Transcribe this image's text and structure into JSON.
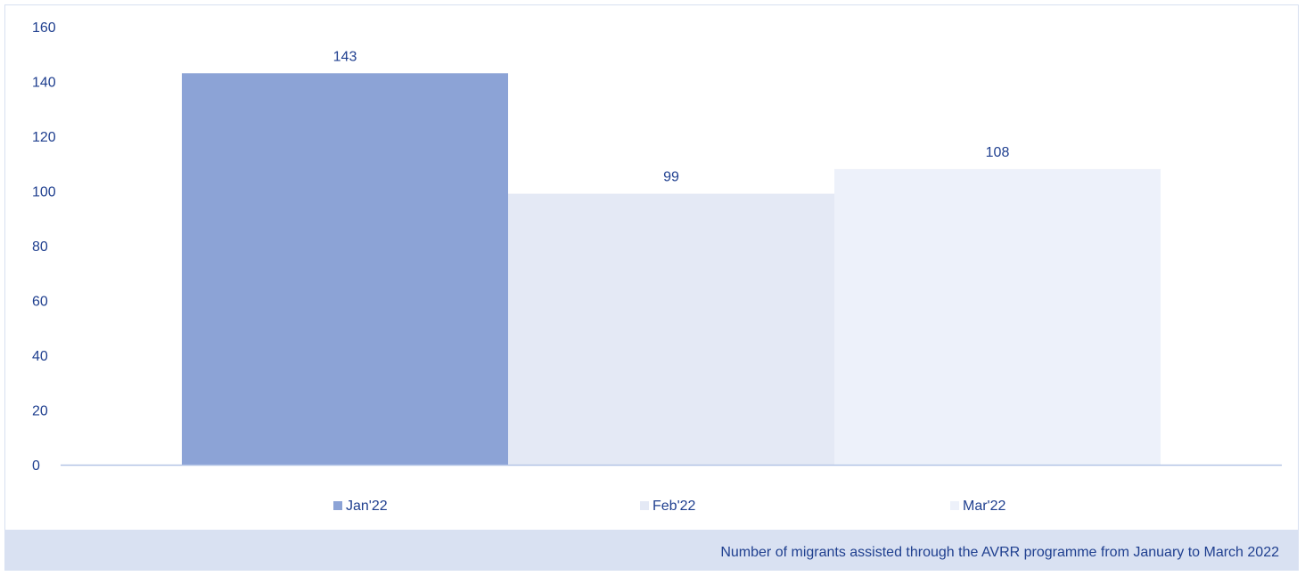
{
  "chart_data": {
    "type": "bar",
    "categories": [
      "Jan'22",
      "Feb'22",
      "Mar'22"
    ],
    "series": [
      {
        "name": "Jan'22",
        "values": [
          143,
          null,
          null
        ],
        "color": "#8ca3d6"
      },
      {
        "name": "Feb'22",
        "values": [
          null,
          99,
          null
        ],
        "color": "#e4e9f5"
      },
      {
        "name": "Mar'22",
        "values": [
          null,
          null,
          108
        ],
        "color": "#edf1fa"
      }
    ],
    "values": [
      143,
      99,
      108
    ],
    "bar_colors": [
      "#8ca3d6",
      "#e4e9f5",
      "#edf1fa"
    ],
    "data_labels": [
      "143",
      "99",
      "108"
    ],
    "ylim": [
      0,
      160
    ],
    "yticks": [
      0,
      20,
      40,
      60,
      80,
      100,
      120,
      140,
      160
    ],
    "grid": false,
    "legend": {
      "placement": "bottom",
      "entries": [
        "Jan'22",
        "Feb'22",
        "Mar'22"
      ]
    },
    "axis_color": "#b4c5e6",
    "text_color": "#1f3f8f",
    "title": "",
    "xlabel": "",
    "ylabel": ""
  },
  "caption": "Number of migrants assisted through the AVRR programme from January to March 2022"
}
